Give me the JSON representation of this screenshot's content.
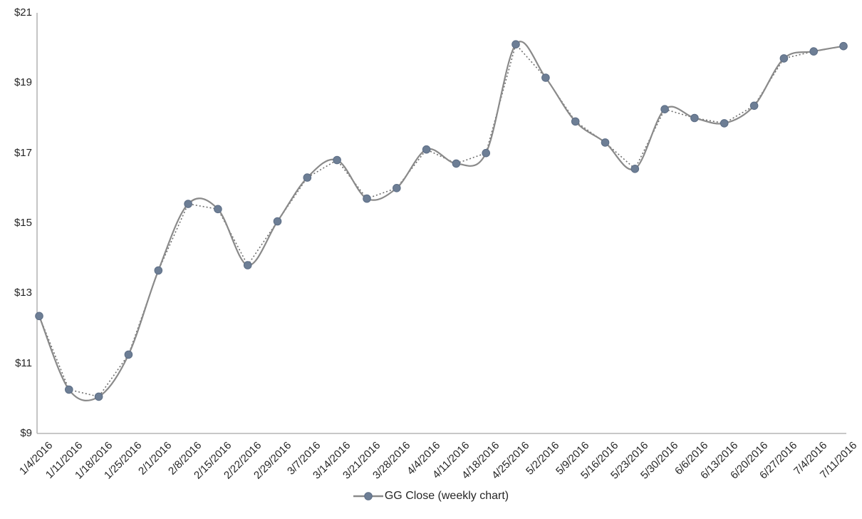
{
  "chart_data": {
    "type": "line",
    "title": "",
    "xlabel": "",
    "ylabel": "",
    "grid": "off",
    "legend_position": "bottom-center",
    "ylim": [
      9,
      21
    ],
    "y_ticks": [
      "$21",
      "$19",
      "$17",
      "$15",
      "$13",
      "$11",
      "$9"
    ],
    "y_tick_values": [
      21,
      19,
      17,
      15,
      13,
      11,
      9
    ],
    "categories": [
      "1/4/2016",
      "1/11/2016",
      "1/18/2016",
      "1/25/2016",
      "2/1/2016",
      "2/8/2016",
      "2/15/2016",
      "2/22/2016",
      "2/29/2016",
      "3/7/2016",
      "3/14/2016",
      "3/21/2016",
      "3/28/2016",
      "4/4/2016",
      "4/11/2016",
      "4/18/2016",
      "4/25/2016",
      "5/2/2016",
      "5/9/2016",
      "5/16/2016",
      "5/23/2016",
      "5/30/2016",
      "6/6/2016",
      "6/13/2016",
      "6/20/2016",
      "6/27/2016",
      "7/4/2016",
      "7/11/2016"
    ],
    "series": [
      {
        "name": "GG Close (weekly chart)",
        "values": [
          12.35,
          10.25,
          10.05,
          11.25,
          13.65,
          15.55,
          15.4,
          13.8,
          15.05,
          16.3,
          16.8,
          15.7,
          16.0,
          17.1,
          16.7,
          17.0,
          20.1,
          19.15,
          17.9,
          17.3,
          16.55,
          18.25,
          18.0,
          17.85,
          18.35,
          19.7,
          19.9,
          20.05
        ],
        "line_styles": [
          "smooth-solid",
          "straight-dotted"
        ],
        "marker": "circle",
        "color_line": "#8a8a8a",
        "color_dotted": "#707070",
        "marker_fill": "#6d7e95",
        "marker_stroke": "#5c6d85"
      }
    ],
    "axis_color": "#a6a6a6",
    "text_color": "#262626"
  }
}
